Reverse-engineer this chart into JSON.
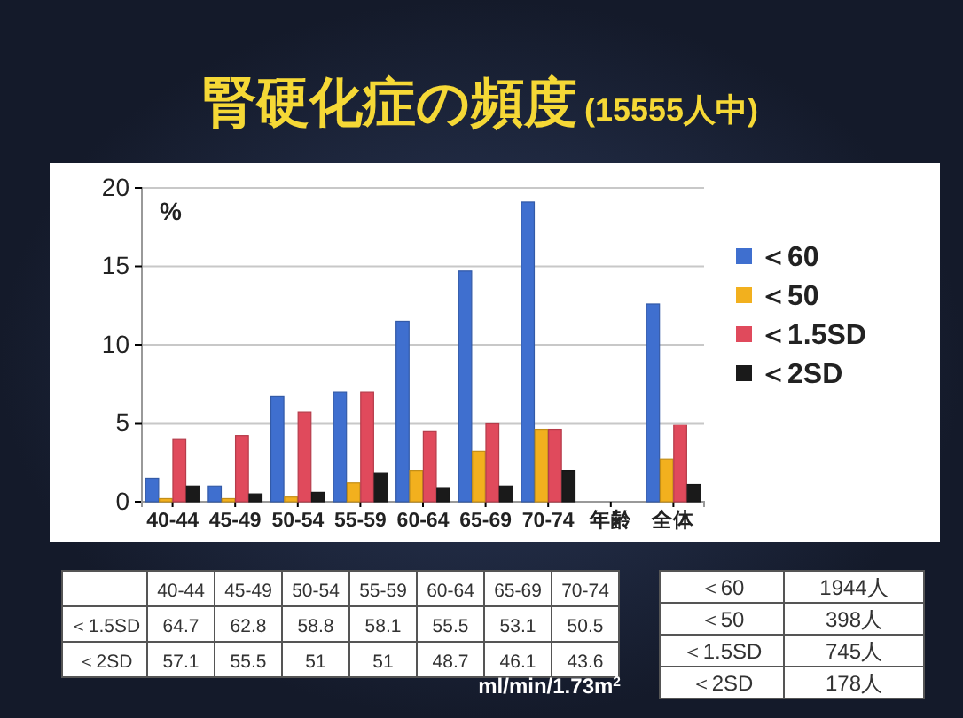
{
  "chart_data": {
    "type": "bar",
    "title": "腎硬化症の頻度",
    "subtitle": "(15555人中)",
    "ylabel": "%",
    "categories": [
      "40-44",
      "45-49",
      "50-54",
      "55-59",
      "60-64",
      "65-69",
      "70-74",
      "年齢",
      "全体"
    ],
    "series": [
      {
        "name": "＜60",
        "color": "#3f6fcf",
        "values": [
          1.5,
          1.0,
          6.7,
          7.0,
          11.5,
          14.7,
          19.1,
          null,
          12.6
        ]
      },
      {
        "name": "＜50",
        "color": "#f2b01e",
        "values": [
          0.2,
          0.2,
          0.3,
          1.2,
          2.0,
          3.2,
          4.6,
          null,
          2.7
        ]
      },
      {
        "name": "＜1.5SD",
        "color": "#e04a5c",
        "values": [
          4.0,
          4.2,
          5.7,
          7.0,
          4.5,
          5.0,
          4.6,
          null,
          4.9
        ]
      },
      {
        "name": "＜2SD",
        "color": "#1a1a1a",
        "values": [
          1.0,
          0.5,
          0.6,
          1.8,
          0.9,
          1.0,
          2.0,
          null,
          1.1
        ]
      }
    ],
    "ylim": [
      0,
      20
    ],
    "yticks": [
      0,
      5,
      10,
      15,
      20
    ],
    "grid": "y",
    "legend": "right",
    "annotations": [
      "40-44",
      "45-49",
      "50-54",
      "55-59",
      "60-64",
      "65-69",
      "70-74",
      "＜1.5SD",
      "64.7",
      "62.8",
      "58.8",
      "58.1",
      "55.5",
      "53.1",
      "50.5",
      "＜2SD",
      "57.1",
      "55.5",
      "51",
      "51",
      "48.7",
      "46.1",
      "43.6",
      "ml/min/1.73m$^{2}$",
      "＜60",
      "1944人",
      "＜50",
      "398人",
      "＜1.5SD",
      "745人",
      "＜2SD",
      "178人"
    ]
  }
}
